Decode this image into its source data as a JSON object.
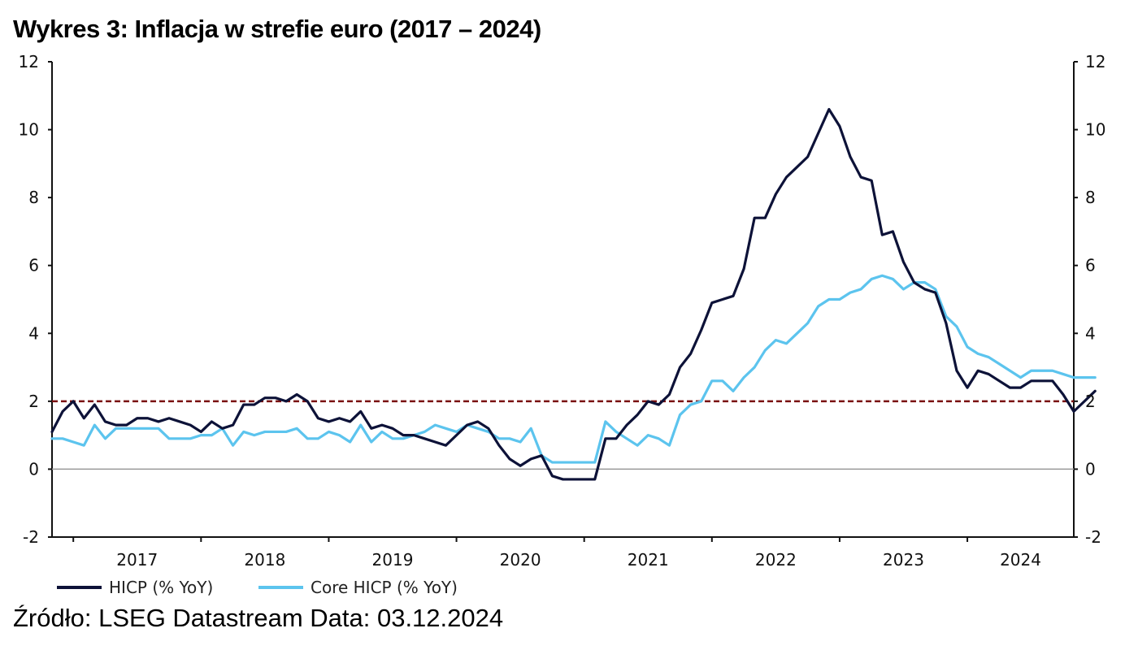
{
  "title": "Wykres 3: Inflacja w strefie euro (2017 – 2024)",
  "source": "Źródło: LSEG Datastream Data: 03.12.2024",
  "chart_data": {
    "type": "line",
    "title": "Wykres 3: Inflacja w strefie euro (2017 – 2024)",
    "xlabel": "",
    "ylabel": "",
    "x_start": "2016-11",
    "x_end": "2024-11",
    "x_tick_labels": [
      "2017",
      "2018",
      "2019",
      "2020",
      "2021",
      "2022",
      "2023",
      "2024"
    ],
    "ylim": [
      -2,
      12
    ],
    "y_ticks": [
      -2,
      0,
      2,
      4,
      6,
      8,
      10,
      12
    ],
    "y_tick_labels": [
      "-2",
      "0",
      "2",
      "4",
      "6",
      "8",
      "10",
      "12"
    ],
    "dual_y_axis_same_scale": true,
    "reference_line": {
      "y": 2,
      "style": "dashed",
      "color": "#7a1010"
    },
    "zero_line": {
      "y": 0,
      "color": "#999999"
    },
    "legend_position": "bottom-left",
    "colors": {
      "hicp": "#0d1238",
      "core": "#5cc4ee"
    },
    "series": [
      {
        "name": "HICP (% YoY)",
        "values": [
          1.1,
          1.7,
          2.0,
          1.5,
          1.9,
          1.4,
          1.3,
          1.3,
          1.5,
          1.5,
          1.4,
          1.5,
          1.4,
          1.3,
          1.1,
          1.4,
          1.2,
          1.3,
          1.9,
          1.9,
          2.1,
          2.1,
          2.0,
          2.2,
          2.0,
          1.5,
          1.4,
          1.5,
          1.4,
          1.7,
          1.2,
          1.3,
          1.2,
          1.0,
          1.0,
          0.9,
          0.8,
          0.7,
          1.0,
          1.3,
          1.4,
          1.2,
          0.7,
          0.3,
          0.1,
          0.3,
          0.4,
          -0.2,
          -0.3,
          -0.3,
          -0.3,
          -0.3,
          0.9,
          0.9,
          1.3,
          1.6,
          2.0,
          1.9,
          2.2,
          3.0,
          3.4,
          4.1,
          4.9,
          5.0,
          5.1,
          5.9,
          7.4,
          7.4,
          8.1,
          8.6,
          8.9,
          9.2,
          9.9,
          10.6,
          10.1,
          9.2,
          8.6,
          8.5,
          6.9,
          7.0,
          6.1,
          5.5,
          5.3,
          5.2,
          4.3,
          2.9,
          2.4,
          2.9,
          2.8,
          2.6,
          2.4,
          2.4,
          2.6,
          2.6,
          2.6,
          2.2,
          1.7,
          2.0,
          2.3
        ]
      },
      {
        "name": "Core HICP (% YoY)",
        "values": [
          0.9,
          0.9,
          0.8,
          0.7,
          1.3,
          0.9,
          1.2,
          1.2,
          1.2,
          1.2,
          1.2,
          0.9,
          0.9,
          0.9,
          1.0,
          1.0,
          1.2,
          0.7,
          1.1,
          1.0,
          1.1,
          1.1,
          1.1,
          1.2,
          0.9,
          0.9,
          1.1,
          1.0,
          0.8,
          1.3,
          0.8,
          1.1,
          0.9,
          0.9,
          1.0,
          1.1,
          1.3,
          1.2,
          1.1,
          1.3,
          1.2,
          1.1,
          0.9,
          0.9,
          0.8,
          1.2,
          0.4,
          0.2,
          0.2,
          0.2,
          0.2,
          0.2,
          1.4,
          1.1,
          0.9,
          0.7,
          1.0,
          0.9,
          0.7,
          1.6,
          1.9,
          2.0,
          2.6,
          2.6,
          2.3,
          2.7,
          3.0,
          3.5,
          3.8,
          3.7,
          4.0,
          4.3,
          4.8,
          5.0,
          5.0,
          5.2,
          5.3,
          5.6,
          5.7,
          5.6,
          5.3,
          5.5,
          5.5,
          5.3,
          4.5,
          4.2,
          3.6,
          3.4,
          3.3,
          3.1,
          2.9,
          2.7,
          2.9,
          2.9,
          2.9,
          2.8,
          2.7,
          2.7,
          2.7
        ]
      }
    ]
  }
}
